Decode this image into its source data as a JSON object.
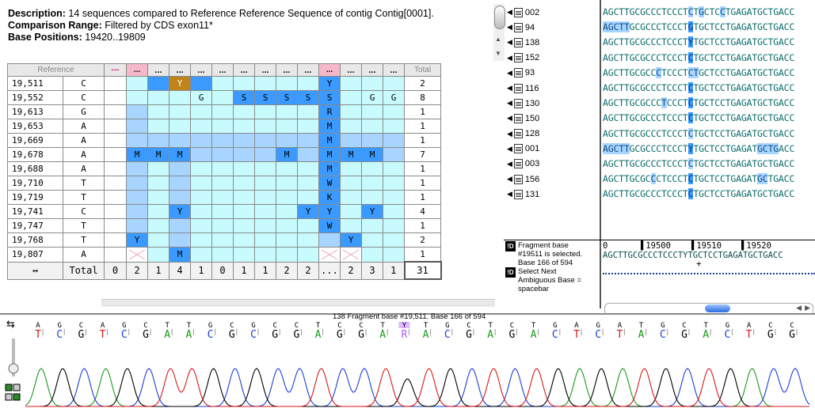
{
  "description": {
    "desc_label": "Description:",
    "desc_text": " 14 sequences compared to Reference Reference Sequence of contig Contig[0001].",
    "range_label": "Comparison Range:",
    "range_text": " Filtered by CDS exon11*",
    "positions_label": "Base Positions:",
    "positions_text": " 19420..19809"
  },
  "grid": {
    "header_reference": "Reference",
    "header_total": "Total",
    "header_cols": [
      "---",
      "...",
      "...",
      "...",
      "...",
      "...",
      "...",
      "...",
      "...",
      "...",
      "...",
      "...",
      "...",
      "..."
    ],
    "rows": [
      {
        "pos": "19,511",
        "ref": "C",
        "cells": [
          "W",
          "L",
          "D",
          "O:Y",
          "D",
          "L",
          "L",
          "L",
          "L",
          "L",
          "D:Y",
          "L",
          "L",
          "L"
        ],
        "total": "2"
      },
      {
        "pos": "19,552",
        "ref": "C",
        "cells": [
          "W",
          "L",
          "L",
          "L",
          "L:G",
          "L",
          "D:S",
          "D:S",
          "D:S",
          "D:S",
          "D:S",
          "L",
          "L:G",
          "L:G"
        ],
        "total": "8"
      },
      {
        "pos": "19,613",
        "ref": "G",
        "cells": [
          "W",
          "M",
          "L",
          "L",
          "L",
          "L",
          "L",
          "L",
          "L",
          "L",
          "D:R",
          "L",
          "L",
          "L"
        ],
        "total": "1"
      },
      {
        "pos": "19,653",
        "ref": "A",
        "cells": [
          "W",
          "M",
          "L",
          "L",
          "L",
          "L",
          "L",
          "L",
          "L",
          "L",
          "D:M",
          "L",
          "L",
          "L"
        ],
        "total": "1"
      },
      {
        "pos": "19,669",
        "ref": "A",
        "cells": [
          "W",
          "M",
          "M",
          "M",
          "M",
          "M",
          "M",
          "M",
          "M",
          "M",
          "D:M",
          "M",
          "M",
          "M"
        ],
        "total": "1"
      },
      {
        "pos": "19,678",
        "ref": "A",
        "cells": [
          "W",
          "D:M",
          "D:M",
          "D:M",
          "M",
          "M",
          "M",
          "M",
          "D:M",
          "M",
          "D:M",
          "D:M",
          "D:M",
          "M"
        ],
        "total": "7"
      },
      {
        "pos": "19,688",
        "ref": "A",
        "cells": [
          "W",
          "M",
          "L",
          "M",
          "L",
          "L",
          "L",
          "L",
          "L",
          "L",
          "D:M",
          "L",
          "L",
          "L"
        ],
        "total": "1"
      },
      {
        "pos": "19,710",
        "ref": "T",
        "cells": [
          "W",
          "M",
          "L",
          "M",
          "L",
          "L",
          "L",
          "L",
          "L",
          "L",
          "D:W",
          "L",
          "L",
          "L"
        ],
        "total": "1"
      },
      {
        "pos": "19,719",
        "ref": "T",
        "cells": [
          "W",
          "M",
          "L",
          "M",
          "L",
          "L",
          "L",
          "L",
          "L",
          "L",
          "D:K",
          "L",
          "L",
          "L"
        ],
        "total": "1"
      },
      {
        "pos": "19,741",
        "ref": "C",
        "cells": [
          "W",
          "M",
          "L",
          "D:Y",
          "L",
          "L",
          "L",
          "L",
          "L",
          "D:Y",
          "D:Y",
          "L",
          "D:Y",
          "L"
        ],
        "total": "4"
      },
      {
        "pos": "19,747",
        "ref": "T",
        "cells": [
          "W",
          "M",
          "L",
          "M",
          "L",
          "L",
          "L",
          "L",
          "L",
          "L",
          "D:W",
          "L",
          "L",
          "L"
        ],
        "total": "1"
      },
      {
        "pos": "19,768",
        "ref": "T",
        "cells": [
          "W",
          "D:Y",
          "L",
          "M",
          "L",
          "L",
          "L",
          "L",
          "L",
          "L",
          "M",
          "D:Y",
          "L",
          "L"
        ],
        "total": "2"
      },
      {
        "pos": "19,807",
        "ref": "A",
        "cells": [
          "W",
          "X",
          "L",
          "D:M",
          "L",
          "L",
          "L",
          "L",
          "L",
          "L",
          "X",
          "X",
          "L",
          "L"
        ],
        "total": "1"
      }
    ],
    "footer_icon": "↔",
    "footer_label": "Total",
    "footer_values": [
      "0",
      "2",
      "1",
      "4",
      "1",
      "0",
      "1",
      "1",
      "2",
      "2",
      "...",
      "2",
      "3",
      "1"
    ],
    "footer_total": "31"
  },
  "sequences": [
    {
      "name": "002",
      "seq": "AGCTTGCGCCCTCCCTCTGCTCCTGAGATGCTGACC",
      "hl": [
        [
          16,
          1,
          "m"
        ],
        [
          18,
          1,
          "m"
        ],
        [
          22,
          1,
          "m"
        ]
      ]
    },
    {
      "name": "94",
      "seq": "AGCTTGCGCCCTCCCTGTGCTCCTGAGATGCTGACC",
      "hl": [
        [
          0,
          5,
          "m"
        ],
        [
          16,
          1,
          "d"
        ]
      ]
    },
    {
      "name": "138",
      "seq": "AGCTTGCGCCCTCCCTYTGCTCCTGAGATGCTGACC",
      "hl": [
        [
          16,
          1,
          "d"
        ]
      ]
    },
    {
      "name": "152",
      "seq": "AGCTTGCGCCCTCCCTCTGCTCCTGAGATGCTGACC",
      "hl": [
        [
          16,
          1,
          "d"
        ]
      ]
    },
    {
      "name": "93",
      "seq": "AGCTTGCGCCCTCCCTCTGCTCCTGAGATGCTGACC",
      "hl": [
        [
          10,
          1,
          "m"
        ],
        [
          16,
          2,
          "m"
        ]
      ]
    },
    {
      "name": "116",
      "seq": "AGCTTGCGCCCTCCCTCTGCTCCTGAGATGCTGACC",
      "hl": [
        [
          16,
          1,
          "d"
        ]
      ]
    },
    {
      "name": "130",
      "seq": "AGCTTGCGCCCTCCCTCTGCTCCTGAGATGCTGACC",
      "hl": [
        [
          11,
          1,
          "m"
        ],
        [
          16,
          1,
          "d"
        ]
      ]
    },
    {
      "name": "150",
      "seq": "AGCTTGCGCCCTCCCTCTGCTCCTGAGATGCTGACC",
      "hl": [
        [
          16,
          1,
          "d"
        ]
      ]
    },
    {
      "name": "128",
      "seq": "AGCTTGCGCCCTCCCTCTGCTCCTGAGATGCTGACC",
      "hl": [
        [
          16,
          1,
          "m"
        ]
      ]
    },
    {
      "name": "001",
      "seq": "AGCTTGCGCCCTCCCTYTGCTCCTGAGATGCTGACC",
      "hl": [
        [
          0,
          5,
          "m"
        ],
        [
          16,
          1,
          "d"
        ],
        [
          29,
          4,
          "m"
        ]
      ]
    },
    {
      "name": "003",
      "seq": "AGCTTGCGCCCTCCCTCTGCTCCTGAGATGCTGACC",
      "hl": [
        [
          16,
          1,
          "m"
        ]
      ]
    },
    {
      "name": "156",
      "seq": "AGCTTGCGCCCTCCCTCTGCTCCTGAGATGCTGACC",
      "hl": [
        [
          9,
          1,
          "m"
        ],
        [
          16,
          1,
          "d"
        ],
        [
          29,
          2,
          "m"
        ]
      ]
    },
    {
      "name": "131",
      "seq": "AGCTTGCGCCCTCCCTCTGCTCCTGAGATGCTGACC",
      "hl": [
        [
          16,
          1,
          "d"
        ]
      ]
    }
  ],
  "info": {
    "selected_line1": "Fragment base",
    "selected_line2": "#19511 is selected.",
    "selected_line3": "Base 166 of 594",
    "next_line1": "Select Next",
    "next_line2": "Ambiguous Base =",
    "next_line3": "spacebar"
  },
  "ruler": {
    "ticks": [
      {
        "label": "0",
        "offset": 0
      },
      {
        "label": "19500",
        "offset": 48
      },
      {
        "label": "19510",
        "offset": 112
      },
      {
        "label": "19520",
        "offset": 175
      }
    ],
    "consensus": "AGCTTGCGCCCTCCCTYTGCTCCTGAGATGCTGACC"
  },
  "trace": {
    "title": "138 Fragment base #19,511. Base 166 of 594",
    "top_bases": [
      "A",
      "G",
      "C",
      "A",
      "G",
      "C",
      "T",
      "T",
      "G",
      "C",
      "G",
      "C",
      "C",
      "T",
      "C",
      "C",
      "T",
      "Y",
      "T",
      "G",
      "C",
      "T",
      "C",
      "T",
      "G",
      "A",
      "G",
      "A",
      "T",
      "G",
      "C",
      "T",
      "G",
      "A",
      "C",
      "C"
    ],
    "bottom_bases": [
      "T",
      "C",
      "G",
      "T",
      "C",
      "G",
      "A",
      "A",
      "C",
      "G",
      "C",
      "G",
      "G",
      "A",
      "G",
      "G",
      "A",
      "R",
      "A",
      "C",
      "G",
      "A",
      "G",
      "A",
      "C",
      "T",
      "C",
      "T",
      "A",
      "C",
      "G",
      "A",
      "C",
      "T",
      "G",
      "G"
    ],
    "colors": {
      "A": "#1a9a1a",
      "C": "#1a3fd8",
      "G": "#000000",
      "T": "#d81a1a",
      "Y": "#b060f0",
      "R": "#b060f0"
    }
  }
}
